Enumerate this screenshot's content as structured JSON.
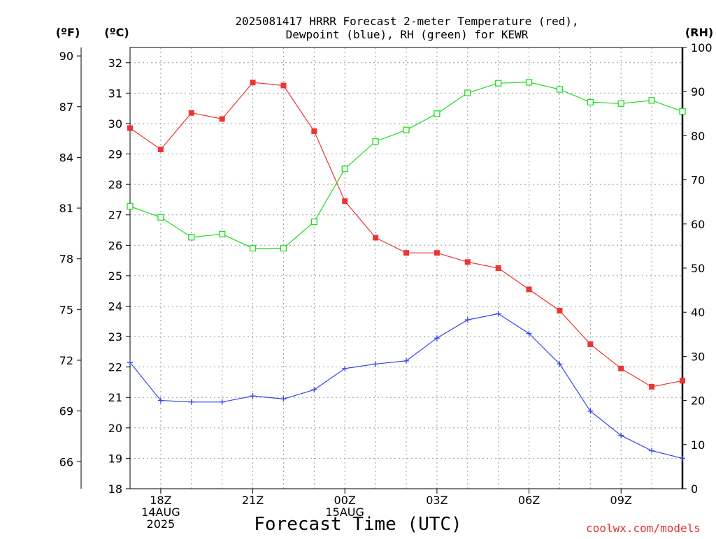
{
  "chart_data": {
    "type": "line",
    "title_lines": [
      "2025081417 HRRR Forecast 2-meter Temperature (red),",
      "Dewpoint (blue), RH (green) for KEWR"
    ],
    "xlabel": "Forecast Time (UTC)",
    "watermark": "coolwx.com/models",
    "left_axis_f": {
      "label": "(ºF)",
      "ticks": [
        66,
        69,
        72,
        75,
        78,
        81,
        84,
        87,
        90
      ]
    },
    "left_axis_c": {
      "label": "(ºC)",
      "ylim": [
        18,
        32.5
      ],
      "ticks": [
        18,
        19,
        20,
        21,
        22,
        23,
        24,
        25,
        26,
        27,
        28,
        29,
        30,
        31,
        32
      ]
    },
    "right_axis": {
      "label": "(RH)",
      "ylim": [
        0,
        100
      ],
      "ticks": [
        0,
        10,
        20,
        30,
        40,
        50,
        60,
        70,
        80,
        90,
        100
      ]
    },
    "x_hours": [
      17,
      18,
      19,
      20,
      21,
      22,
      23,
      24,
      25,
      26,
      27,
      28,
      29,
      30,
      31,
      32,
      33,
      34,
      35
    ],
    "x_ticks": [
      {
        "hour": 18,
        "lines": [
          "18Z",
          "14AUG",
          "2025"
        ]
      },
      {
        "hour": 21,
        "lines": [
          "21Z"
        ]
      },
      {
        "hour": 24,
        "lines": [
          "00Z",
          "15AUG"
        ]
      },
      {
        "hour": 27,
        "lines": [
          "03Z"
        ]
      },
      {
        "hour": 30,
        "lines": [
          "06Z"
        ]
      },
      {
        "hour": 33,
        "lines": [
          "09Z"
        ]
      }
    ],
    "grid": true,
    "series": [
      {
        "name": "Temperature",
        "axis": "celsius",
        "color": "#ee3333",
        "marker": "filled-square",
        "values": [
          29.85,
          29.15,
          30.35,
          30.15,
          31.35,
          31.25,
          29.75,
          27.45,
          26.25,
          25.75,
          25.75,
          25.45,
          25.25,
          24.55,
          23.85,
          22.75,
          21.95,
          21.35,
          21.55
        ]
      },
      {
        "name": "Dewpoint",
        "axis": "celsius",
        "color": "#3344ee",
        "marker": "plus",
        "values": [
          22.15,
          20.9,
          20.85,
          20.85,
          21.05,
          20.95,
          21.25,
          21.95,
          22.1,
          22.2,
          22.95,
          23.55,
          23.75,
          23.1,
          22.1,
          20.55,
          19.75,
          19.25,
          19.0
        ]
      },
      {
        "name": "RH",
        "axis": "rh",
        "color": "#22dd22",
        "marker": "open-square",
        "values": [
          64,
          61.5,
          57,
          57.7,
          54.5,
          54.5,
          60.5,
          72.5,
          78.7,
          81.3,
          85,
          89.7,
          91.9,
          92.1,
          90.5,
          87.6,
          87.3,
          88.0,
          85.5
        ]
      }
    ]
  }
}
